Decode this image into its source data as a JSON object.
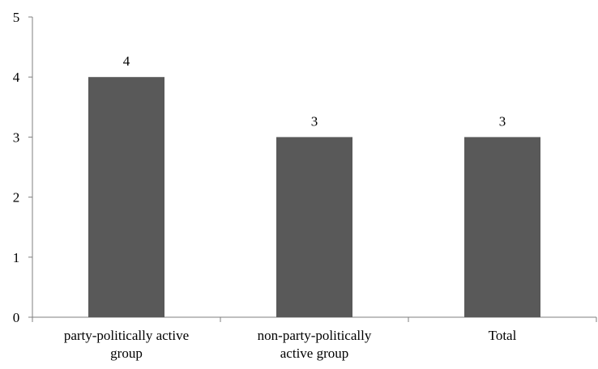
{
  "chart_data": {
    "type": "bar",
    "title": "",
    "xlabel": "",
    "ylabel": "",
    "categories": [
      "party-politically active group",
      "non-party-politically active group",
      "Total"
    ],
    "category_lines": [
      [
        "party-politically active",
        "group"
      ],
      [
        "non-party-politically",
        "active group"
      ],
      [
        "Total"
      ]
    ],
    "values": [
      4,
      3,
      3
    ],
    "data_labels": [
      "4",
      "3",
      "3"
    ],
    "ylim": [
      0,
      5
    ],
    "y_ticks": [
      0,
      1,
      2,
      3,
      4,
      5
    ],
    "grid": false,
    "legend": "none",
    "bar_color": "#595959",
    "axis_color": "#7f7f7f"
  }
}
